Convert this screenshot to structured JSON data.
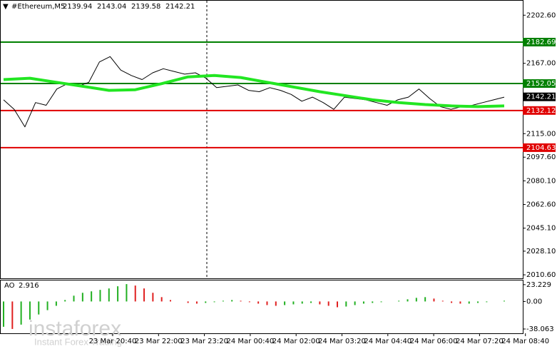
{
  "chart_data": {
    "type": "line",
    "symbol": "#Ethereum,M5",
    "ohlc": [
      2139.94,
      2143.04,
      2139.58,
      2142.21
    ],
    "ylim": [
      2008,
      2213.3
    ],
    "yticks": [
      {
        "value": 2202.6,
        "label": "2202.60"
      },
      {
        "value": 2167.0,
        "label": "2167.00"
      },
      {
        "value": 2115.0,
        "label": "2115.00"
      },
      {
        "value": 2097.6,
        "label": "2097.60"
      },
      {
        "value": 2080.1,
        "label": "2080.10"
      },
      {
        "value": 2062.6,
        "label": "2062.60"
      },
      {
        "value": 2045.1,
        "label": "2045.10"
      },
      {
        "value": 2028.1,
        "label": "2028.10"
      },
      {
        "value": 2010.6,
        "label": "2010.60"
      }
    ],
    "x_labels": [
      "23 Mar 20:40",
      "23 Mar 22:00",
      "23 Mar 23:20",
      "24 Mar 00:40",
      "24 Mar 02:00",
      "24 Mar 03:20",
      "24 Mar 04:40",
      "24 Mar 06:00",
      "24 Mar 07:20",
      "24 Mar 08:40"
    ],
    "series": [
      {
        "color": "#000000",
        "values": [
          2140,
          2133,
          2120,
          2138,
          2136,
          2148,
          2152,
          2150,
          2153,
          2168,
          2172,
          2162,
          2158,
          2155,
          2160,
          2163,
          2161,
          2159,
          2160,
          2156,
          2149,
          2150,
          2151,
          2147,
          2146,
          2149,
          2147,
          2144,
          2139,
          2142,
          2138,
          2133,
          2142,
          2141,
          2140,
          2138,
          2136,
          2140,
          2142,
          2148,
          2141,
          2135,
          2133,
          2135,
          2136,
          2138,
          2140,
          2142
        ]
      },
      {
        "color": "#22e622",
        "values": [
          2155,
          2156,
          2153,
          2150,
          2147,
          2147.5,
          2152,
          2157,
          2158,
          2156.5,
          2153,
          2149.5,
          2146,
          2143,
          2140,
          2138,
          2136.5,
          2135.5,
          2135,
          2135.5
        ]
      }
    ],
    "levels": [
      {
        "value": 2182.69,
        "color": "#008000"
      },
      {
        "value": 2152.05,
        "color": "#008000"
      },
      {
        "value": 2132.12,
        "color": "#e00000"
      },
      {
        "value": 2104.63,
        "color": "#e00000"
      }
    ],
    "last_price": 2142.21,
    "indicator": {
      "type": "bar",
      "name": "AO",
      "value": 2.916,
      "ylim": [
        -44,
        29
      ],
      "yticks": [
        23.229,
        {
          "value": 0,
          "label": "0.00"
        },
        -38.063
      ],
      "up_color": "#22b022",
      "down_color": "#e02020",
      "values": [
        -35,
        -38,
        -32,
        -25,
        -18,
        -12,
        -6,
        2,
        8,
        12,
        14,
        16,
        18,
        21,
        24,
        22,
        18,
        12,
        6,
        2,
        0,
        -2,
        -3,
        -2,
        -1,
        1,
        2,
        1,
        -1,
        -3,
        -5,
        -6,
        -5,
        -4,
        -3,
        -2,
        -4,
        -6,
        -8,
        -7,
        -5,
        -3,
        -2,
        -1,
        0,
        1,
        3,
        5,
        6,
        4,
        1,
        -2,
        -3,
        -3,
        -2,
        -1,
        0,
        1
      ]
    },
    "watermark": {
      "brand": "instaforex",
      "slogan": "Instant Forex Trading"
    }
  }
}
